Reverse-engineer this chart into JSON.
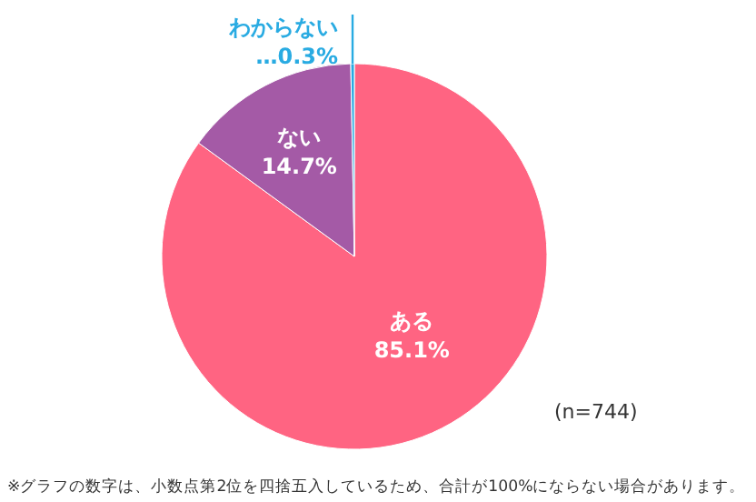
{
  "chart_data": {
    "type": "pie",
    "categories": [
      "ある",
      "ない",
      "わからない"
    ],
    "values": [
      85.1,
      14.7,
      0.3
    ],
    "colors": [
      "#ff6482",
      "#a45aa6",
      "#29abe2"
    ],
    "value_labels": [
      "85.1%",
      "14.7%",
      "…0.3%"
    ],
    "annotations": [
      "(n=744)",
      "※グラフの数字は、小数点第2位を四捨五入しているため、合計が100%にならない場合があります。"
    ]
  }
}
